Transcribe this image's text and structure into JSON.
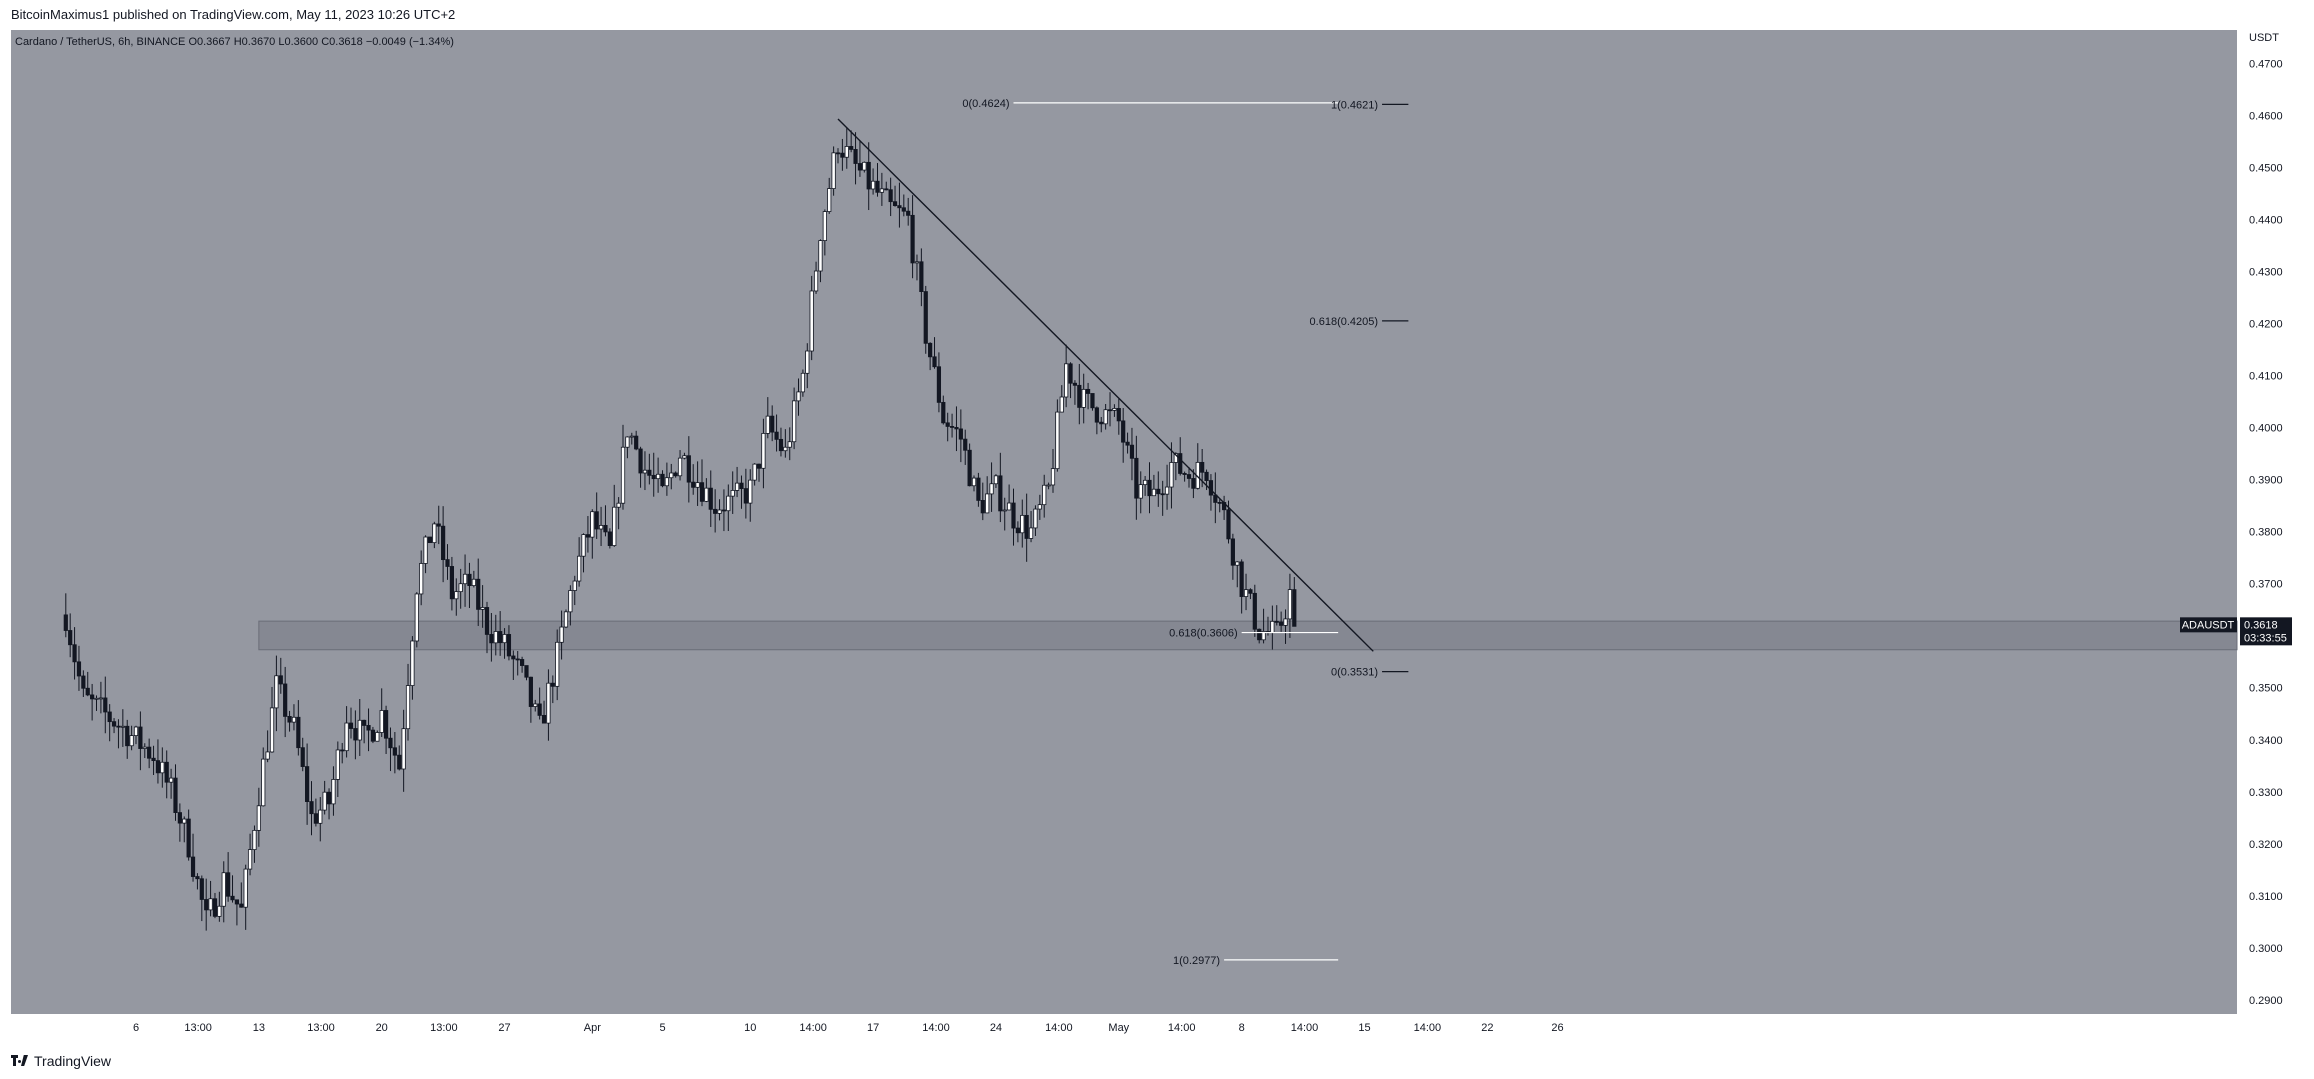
{
  "header": {
    "published_text": "BitcoinMaximus1 published on TradingView.com, May 11, 2023 10:26 UTC+2"
  },
  "legend": {
    "symbol_text": "Cardano / TetherUS, 6h, BINANCE",
    "open_label": "O",
    "open_value": "0.3667",
    "high_label": "H",
    "high_value": "0.3670",
    "low_label": "L",
    "low_value": "0.3600",
    "close_label": "C",
    "close_value": "0.3618",
    "change_text": "−0.0049 (−1.34%)"
  },
  "price_badge": {
    "symbol": "ADAUSDT",
    "price": "0.3618",
    "countdown": "03:33:55"
  },
  "footer": {
    "brand": "TradingView"
  },
  "colors": {
    "background": "#9598a1",
    "axis_bg": "#ffffff",
    "candle_up": "#ffffff",
    "candle_down": "#131722",
    "support_zone": "#787b86",
    "fib_line": "#ffffff",
    "fib_line_dark": "#131722",
    "trendline": "#131722"
  },
  "chart_data": {
    "type": "candlestick",
    "ylabel": "USDT",
    "ylim": [
      0.2873,
      0.4764
    ],
    "y_ticks": [
      "0.4700",
      "0.4600",
      "0.4500",
      "0.4400",
      "0.4300",
      "0.4200",
      "0.4100",
      "0.4000",
      "0.3900",
      "0.3800",
      "0.3700",
      "0.3600",
      "0.3500",
      "0.3400",
      "0.3300",
      "0.3200",
      "0.3100",
      "0.3000",
      "0.2900"
    ],
    "x_ticks": [
      {
        "label": "6",
        "date": "2023-03-06"
      },
      {
        "label": "13:00",
        "date": "2023-03-09T13:00"
      },
      {
        "label": "13",
        "date": "2023-03-13"
      },
      {
        "label": "13:00",
        "date": "2023-03-16T13:00"
      },
      {
        "label": "20",
        "date": "2023-03-20"
      },
      {
        "label": "13:00",
        "date": "2023-03-23T13:00"
      },
      {
        "label": "27",
        "date": "2023-03-27"
      },
      {
        "label": "Apr",
        "date": "2023-04-01"
      },
      {
        "label": "5",
        "date": "2023-04-05"
      },
      {
        "label": "10",
        "date": "2023-04-10"
      },
      {
        "label": "14:00",
        "date": "2023-04-13T14:00"
      },
      {
        "label": "17",
        "date": "2023-04-17"
      },
      {
        "label": "14:00",
        "date": "2023-04-20T14:00"
      },
      {
        "label": "24",
        "date": "2023-04-24"
      },
      {
        "label": "14:00",
        "date": "2023-04-27T14:00"
      },
      {
        "label": "May",
        "date": "2023-05-01"
      },
      {
        "label": "14:00",
        "date": "2023-05-04T14:00"
      },
      {
        "label": "8",
        "date": "2023-05-08"
      },
      {
        "label": "14:00",
        "date": "2023-05-11T14:00"
      },
      {
        "label": "15",
        "date": "2023-05-15"
      },
      {
        "label": "14:00",
        "date": "2023-05-18T14:00"
      },
      {
        "label": "22",
        "date": "2023-05-22"
      },
      {
        "label": "26",
        "date": "2023-05-26"
      }
    ],
    "price_path": [
      {
        "date": "2023-03-02",
        "price": 0.364
      },
      {
        "date": "2023-03-03",
        "price": 0.348
      },
      {
        "date": "2023-03-05",
        "price": 0.343
      },
      {
        "date": "2023-03-07",
        "price": 0.337
      },
      {
        "date": "2023-03-08",
        "price": 0.33
      },
      {
        "date": "2023-03-09",
        "price": 0.32
      },
      {
        "date": "2023-03-10",
        "price": 0.305
      },
      {
        "date": "2023-03-11",
        "price": 0.313
      },
      {
        "date": "2023-03-12",
        "price": 0.307
      },
      {
        "date": "2023-03-13",
        "price": 0.33
      },
      {
        "date": "2023-03-14",
        "price": 0.35
      },
      {
        "date": "2023-03-15",
        "price": 0.342
      },
      {
        "date": "2023-03-16",
        "price": 0.325
      },
      {
        "date": "2023-03-17",
        "price": 0.328
      },
      {
        "date": "2023-03-18",
        "price": 0.345
      },
      {
        "date": "2023-03-19",
        "price": 0.34
      },
      {
        "date": "2023-03-20",
        "price": 0.345
      },
      {
        "date": "2023-03-21",
        "price": 0.335
      },
      {
        "date": "2023-03-22",
        "price": 0.37
      },
      {
        "date": "2023-03-23",
        "price": 0.382
      },
      {
        "date": "2023-03-24",
        "price": 0.368
      },
      {
        "date": "2023-03-25",
        "price": 0.37
      },
      {
        "date": "2023-03-26",
        "price": 0.362
      },
      {
        "date": "2023-03-27",
        "price": 0.358
      },
      {
        "date": "2023-03-28",
        "price": 0.352
      },
      {
        "date": "2023-03-29",
        "price": 0.342
      },
      {
        "date": "2023-03-30",
        "price": 0.356
      },
      {
        "date": "2023-03-31",
        "price": 0.372
      },
      {
        "date": "2023-04-01",
        "price": 0.382
      },
      {
        "date": "2023-04-02",
        "price": 0.376
      },
      {
        "date": "2023-04-03",
        "price": 0.4
      },
      {
        "date": "2023-04-04",
        "price": 0.392
      },
      {
        "date": "2023-04-05",
        "price": 0.387
      },
      {
        "date": "2023-04-06",
        "price": 0.395
      },
      {
        "date": "2023-04-07",
        "price": 0.39
      },
      {
        "date": "2023-04-08",
        "price": 0.385
      },
      {
        "date": "2023-04-09",
        "price": 0.386
      },
      {
        "date": "2023-04-10",
        "price": 0.388
      },
      {
        "date": "2023-04-11",
        "price": 0.4
      },
      {
        "date": "2023-04-12",
        "price": 0.395
      },
      {
        "date": "2023-04-13",
        "price": 0.41
      },
      {
        "date": "2023-04-14",
        "price": 0.438
      },
      {
        "date": "2023-04-15",
        "price": 0.455
      },
      {
        "date": "2023-04-16",
        "price": 0.45
      },
      {
        "date": "2023-04-17",
        "price": 0.446
      },
      {
        "date": "2023-04-18",
        "price": 0.442
      },
      {
        "date": "2023-04-19",
        "price": 0.44
      },
      {
        "date": "2023-04-20",
        "price": 0.418
      },
      {
        "date": "2023-04-21",
        "price": 0.402
      },
      {
        "date": "2023-04-22",
        "price": 0.398
      },
      {
        "date": "2023-04-23",
        "price": 0.385
      },
      {
        "date": "2023-04-24",
        "price": 0.388
      },
      {
        "date": "2023-04-25",
        "price": 0.383
      },
      {
        "date": "2023-04-26",
        "price": 0.38
      },
      {
        "date": "2023-04-27",
        "price": 0.388
      },
      {
        "date": "2023-04-28",
        "price": 0.412
      },
      {
        "date": "2023-04-29",
        "price": 0.405
      },
      {
        "date": "2023-04-30",
        "price": 0.403
      },
      {
        "date": "2023-05-01",
        "price": 0.401
      },
      {
        "date": "2023-05-02",
        "price": 0.388
      },
      {
        "date": "2023-05-03",
        "price": 0.387
      },
      {
        "date": "2023-05-04",
        "price": 0.393
      },
      {
        "date": "2023-05-05",
        "price": 0.391
      },
      {
        "date": "2023-05-06",
        "price": 0.392
      },
      {
        "date": "2023-05-07",
        "price": 0.383
      },
      {
        "date": "2023-05-08",
        "price": 0.37
      },
      {
        "date": "2023-05-09",
        "price": 0.361
      },
      {
        "date": "2023-05-10",
        "price": 0.36
      },
      {
        "date": "2023-05-10T18:00",
        "price": 0.368
      },
      {
        "date": "2023-05-11",
        "price": 0.3618
      }
    ],
    "support_zone": {
      "from_date": "2023-03-13",
      "top": 0.3628,
      "bottom": 0.3573
    },
    "trendline": {
      "start": {
        "date": "2023-04-15",
        "price": 0.4593
      },
      "end": {
        "date": "2023-05-15T12:00",
        "price": 0.357
      }
    },
    "fib_levels": [
      {
        "label": "0(0.4624)",
        "price": 0.4624,
        "from_date": "2023-04-25",
        "to_date": "2023-05-13T12:00",
        "style": "light"
      },
      {
        "label": "1(0.4621)",
        "price": 0.4621,
        "from_date": "2023-05-16",
        "to_date": "2023-05-17T12:00",
        "style": "dark"
      },
      {
        "label": "0.618(0.4205)",
        "price": 0.4205,
        "from_date": "2023-05-16",
        "to_date": "2023-05-17T12:00",
        "style": "dark"
      },
      {
        "label": "0.618(0.3606)",
        "price": 0.3606,
        "from_date": "2023-05-08",
        "to_date": "2023-05-13T12:00",
        "style": "light"
      },
      {
        "label": "0(0.3531)",
        "price": 0.3531,
        "from_date": "2023-05-16",
        "to_date": "2023-05-17T12:00",
        "style": "dark"
      },
      {
        "label": "1(0.2977)",
        "price": 0.2977,
        "from_date": "2023-05-07",
        "to_date": "2023-05-13T12:00",
        "style": "light"
      }
    ]
  }
}
